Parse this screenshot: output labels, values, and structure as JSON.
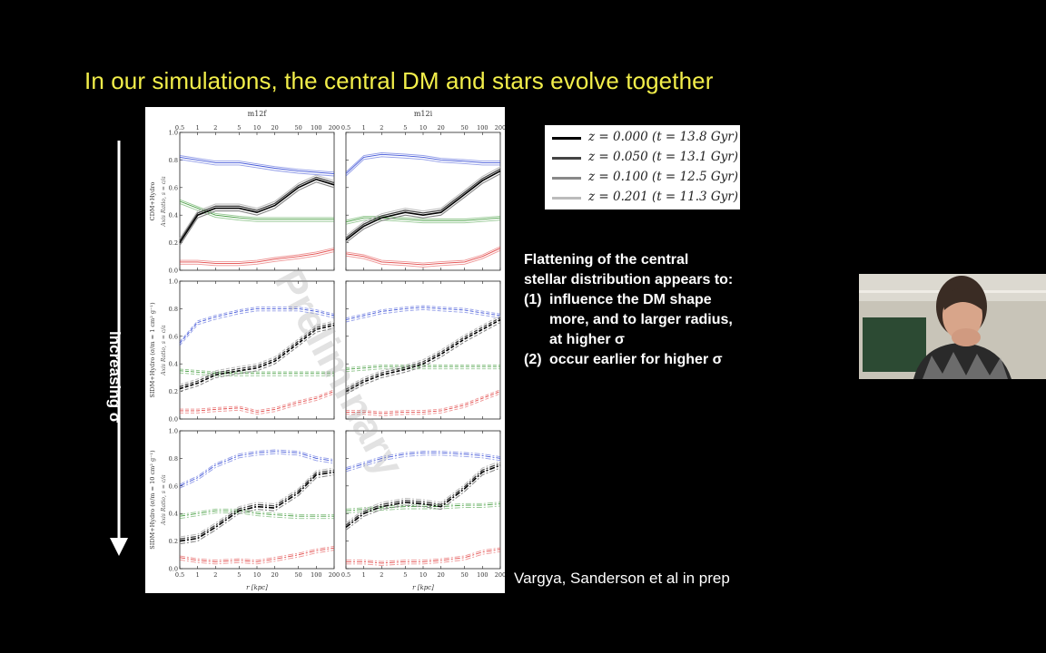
{
  "slide": {
    "title": "In our simulations, the central DM and stars evolve together",
    "arrow_label": "increasing σ",
    "credit": "Vargya, Sanderson et al in prep",
    "note": {
      "heading_line1": "Flattening of the central",
      "heading_line2": "stellar distribution appears to:",
      "items": [
        {
          "num": "(1)",
          "line1": "influence the DM shape",
          "line2": "more, and to larger radius,",
          "line3": "at higher σ"
        },
        {
          "num": "(2)",
          "line1": "occur earlier for higher σ"
        }
      ]
    },
    "legend": [
      {
        "label": "z = 0.000 (t = 13.8 Gyr)",
        "color": "#000000"
      },
      {
        "label": "z = 0.050 (t = 13.1 Gyr)",
        "color": "#444444"
      },
      {
        "label": "z = 0.100 (t = 12.5 Gyr)",
        "color": "#888888"
      },
      {
        "label": "z = 0.201 (t = 11.3 Gyr)",
        "color": "#bbbbbb"
      }
    ]
  },
  "figure": {
    "watermark": "Preliminary",
    "column_titles": [
      "m12f",
      "m12i"
    ],
    "row_labels": [
      "CDM+Hydro",
      "SIDM+Hydro  (σ/m = 1 cm² g⁻¹)",
      "SIDM+Hydro  (σ/m = 10 cm² g⁻¹)"
    ],
    "y_axis_label": "Axis Ratio, s = c/a",
    "x_axis_label": "r [kpc]",
    "x_ticks": [
      "0.5",
      "1",
      "2",
      "5",
      "10",
      "20",
      "50",
      "100",
      "200"
    ],
    "y_ticks": [
      "0.0",
      "0.2",
      "0.4",
      "0.6",
      "0.8",
      "1.0"
    ]
  },
  "chart_data": {
    "type": "line",
    "xlabel": "r [kpc]",
    "ylabel": "Axis Ratio, s = c/a",
    "xscale": "log",
    "xlim": [
      0.5,
      200
    ],
    "ylim": [
      0,
      1
    ],
    "x": [
      0.5,
      1,
      2,
      5,
      10,
      20,
      50,
      100,
      200
    ],
    "series_colors": {
      "dm": "#1a1a1a",
      "stars_blue": "#3a4fd6",
      "gas_green": "#3f9a3a",
      "red": "#e04040"
    },
    "panels": [
      {
        "row": 0,
        "col": 0,
        "blue": [
          0.82,
          0.8,
          0.78,
          0.78,
          0.76,
          0.74,
          0.72,
          0.71,
          0.7
        ],
        "black": [
          0.2,
          0.4,
          0.45,
          0.45,
          0.42,
          0.47,
          0.6,
          0.66,
          0.62
        ],
        "green": [
          0.5,
          0.45,
          0.4,
          0.38,
          0.37,
          0.37,
          0.37,
          0.37,
          0.37
        ],
        "red": [
          0.06,
          0.06,
          0.05,
          0.05,
          0.06,
          0.08,
          0.1,
          0.12,
          0.15
        ]
      },
      {
        "row": 0,
        "col": 1,
        "blue": [
          0.7,
          0.82,
          0.84,
          0.83,
          0.82,
          0.8,
          0.79,
          0.78,
          0.78
        ],
        "black": [
          0.22,
          0.32,
          0.38,
          0.42,
          0.4,
          0.42,
          0.55,
          0.65,
          0.72
        ],
        "green": [
          0.35,
          0.38,
          0.38,
          0.37,
          0.36,
          0.36,
          0.36,
          0.37,
          0.38
        ],
        "red": [
          0.12,
          0.1,
          0.06,
          0.05,
          0.04,
          0.05,
          0.06,
          0.1,
          0.16
        ]
      },
      {
        "row": 1,
        "col": 0,
        "blue": [
          0.55,
          0.7,
          0.74,
          0.78,
          0.8,
          0.8,
          0.8,
          0.78,
          0.75
        ],
        "black": [
          0.22,
          0.26,
          0.32,
          0.35,
          0.37,
          0.42,
          0.55,
          0.65,
          0.68
        ],
        "green": [
          0.35,
          0.34,
          0.33,
          0.33,
          0.33,
          0.33,
          0.33,
          0.33,
          0.33
        ],
        "red": [
          0.06,
          0.06,
          0.07,
          0.08,
          0.05,
          0.07,
          0.12,
          0.15,
          0.2
        ]
      },
      {
        "row": 1,
        "col": 1,
        "blue": [
          0.72,
          0.75,
          0.78,
          0.8,
          0.81,
          0.8,
          0.79,
          0.77,
          0.75
        ],
        "black": [
          0.2,
          0.27,
          0.32,
          0.36,
          0.4,
          0.47,
          0.58,
          0.65,
          0.72
        ],
        "green": [
          0.36,
          0.37,
          0.38,
          0.38,
          0.38,
          0.38,
          0.38,
          0.38,
          0.38
        ],
        "red": [
          0.05,
          0.05,
          0.04,
          0.05,
          0.05,
          0.06,
          0.1,
          0.15,
          0.2
        ]
      },
      {
        "row": 2,
        "col": 0,
        "blue": [
          0.6,
          0.66,
          0.75,
          0.82,
          0.84,
          0.85,
          0.84,
          0.8,
          0.78
        ],
        "black": [
          0.2,
          0.22,
          0.3,
          0.42,
          0.45,
          0.44,
          0.55,
          0.68,
          0.7
        ],
        "green": [
          0.38,
          0.4,
          0.42,
          0.42,
          0.4,
          0.39,
          0.38,
          0.38,
          0.38
        ],
        "red": [
          0.08,
          0.06,
          0.05,
          0.06,
          0.05,
          0.07,
          0.1,
          0.13,
          0.15
        ]
      },
      {
        "row": 2,
        "col": 1,
        "blue": [
          0.72,
          0.76,
          0.8,
          0.83,
          0.84,
          0.84,
          0.83,
          0.82,
          0.8
        ],
        "black": [
          0.3,
          0.4,
          0.45,
          0.48,
          0.47,
          0.45,
          0.58,
          0.7,
          0.75
        ],
        "green": [
          0.42,
          0.43,
          0.44,
          0.45,
          0.45,
          0.45,
          0.46,
          0.46,
          0.47
        ],
        "red": [
          0.05,
          0.05,
          0.04,
          0.05,
          0.05,
          0.06,
          0.08,
          0.12,
          0.14
        ]
      }
    ]
  }
}
